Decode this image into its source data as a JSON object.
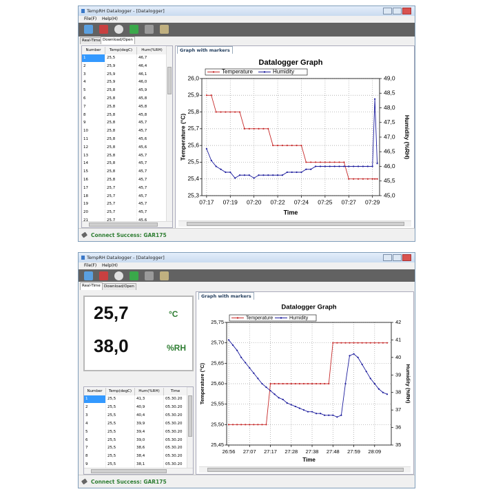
{
  "windows": [
    {
      "title": "TempRH Datalogger - [Datalogger]",
      "menu": [
        "File(F)",
        "Help(H)"
      ],
      "tabs": [
        "Real-Time",
        "Download/Open"
      ],
      "table": {
        "columns": [
          "Number",
          "Temp(degC)",
          "Hum(%RH)"
        ],
        "rows": [
          [
            "1",
            "25,5",
            "46,7"
          ],
          [
            "2",
            "25,9",
            "46,4"
          ],
          [
            "3",
            "25,9",
            "46,1"
          ],
          [
            "4",
            "25,9",
            "46,0"
          ],
          [
            "5",
            "25,8",
            "45,9"
          ],
          [
            "6",
            "25,8",
            "45,8"
          ],
          [
            "7",
            "25,8",
            "45,8"
          ],
          [
            "8",
            "25,8",
            "45,8"
          ],
          [
            "9",
            "25,8",
            "45,7"
          ],
          [
            "10",
            "25,8",
            "45,7"
          ],
          [
            "11",
            "25,8",
            "45,6"
          ],
          [
            "12",
            "25,8",
            "45,6"
          ],
          [
            "13",
            "25,8",
            "45,7"
          ],
          [
            "14",
            "25,8",
            "45,7"
          ],
          [
            "15",
            "25,8",
            "45,7"
          ],
          [
            "16",
            "25,8",
            "45,7"
          ],
          [
            "17",
            "25,7",
            "45,7"
          ],
          [
            "18",
            "25,7",
            "45,7"
          ],
          [
            "19",
            "25,7",
            "45,7"
          ],
          [
            "20",
            "25,7",
            "45,7"
          ],
          [
            "21",
            "25,7",
            "45,6"
          ]
        ]
      },
      "graph_tab": "Graph with markers",
      "status": "Connect Success: GAR175"
    },
    {
      "title": "TempRH Datalogger - [Datalogger]",
      "menu": [
        "File(F)",
        "Help(H)"
      ],
      "tabs": [
        "Real-Time",
        "Download/Open"
      ],
      "readout": {
        "temperature": "25,7",
        "temperature_unit": "°C",
        "humidity": "38,0",
        "humidity_unit": "%RH"
      },
      "table": {
        "columns": [
          "Number",
          "Temp(degC)",
          "Hum(%RH)",
          "Time"
        ],
        "rows": [
          [
            "1",
            "25,5",
            "41,3",
            "05.30.20"
          ],
          [
            "2",
            "25,5",
            "40,9",
            "05.30.20"
          ],
          [
            "3",
            "25,5",
            "40,4",
            "05.30.20"
          ],
          [
            "4",
            "25,5",
            "39,9",
            "05.30.20"
          ],
          [
            "5",
            "25,5",
            "39,4",
            "05.30.20"
          ],
          [
            "6",
            "25,5",
            "39,0",
            "05.30.20"
          ],
          [
            "7",
            "25,5",
            "38,6",
            "05.30.20"
          ],
          [
            "8",
            "25,5",
            "38,4",
            "05.30.20"
          ],
          [
            "9",
            "25,5",
            "38,1",
            "05.30.20"
          ]
        ]
      },
      "graph_tab": "Graph with markers",
      "status": "Connect Success: GAR175"
    }
  ],
  "chart_data": [
    {
      "type": "line",
      "title": "Datalogger Graph",
      "x_label": "Time",
      "y_label": "Temperature (°C)",
      "y2_label": "Humidity (%RH)",
      "grid": true,
      "x": [
        0,
        2,
        4,
        6,
        8,
        10,
        12,
        14,
        16,
        18,
        20,
        22,
        24,
        26,
        28,
        30,
        32,
        34,
        36,
        38,
        40,
        42,
        44,
        46,
        48,
        50,
        52,
        54,
        56,
        58,
        60,
        62,
        64,
        66,
        68,
        70,
        71,
        72
      ],
      "xlim": [
        -2,
        73
      ],
      "xticks": [
        {
          "value": 0,
          "label": "07:17"
        },
        {
          "value": 10,
          "label": "07:19"
        },
        {
          "value": 20,
          "label": "07:20"
        },
        {
          "value": 30,
          "label": "07:22"
        },
        {
          "value": 40,
          "label": "07:24"
        },
        {
          "value": 50,
          "label": "07:25"
        },
        {
          "value": 60,
          "label": "07:27"
        },
        {
          "value": 70,
          "label": "07:29"
        }
      ],
      "ylim": [
        25.3,
        26.0
      ],
      "yticks": [
        {
          "value": 25.3,
          "label": "25,3"
        },
        {
          "value": 25.4,
          "label": "25,4"
        },
        {
          "value": 25.5,
          "label": "25,5"
        },
        {
          "value": 25.6,
          "label": "25,6"
        },
        {
          "value": 25.7,
          "label": "25,7"
        },
        {
          "value": 25.8,
          "label": "25,8"
        },
        {
          "value": 25.9,
          "label": "25,9"
        },
        {
          "value": 26.0,
          "label": "26,0"
        }
      ],
      "y2lim": [
        45.0,
        49.0
      ],
      "y2ticks": [
        {
          "value": 45.0,
          "label": "45,0"
        },
        {
          "value": 45.5,
          "label": "45,5"
        },
        {
          "value": 46.0,
          "label": "46,0"
        },
        {
          "value": 46.5,
          "label": "46,5"
        },
        {
          "value": 47.0,
          "label": "47,0"
        },
        {
          "value": 47.5,
          "label": "47,5"
        },
        {
          "value": 48.0,
          "label": "48,0"
        },
        {
          "value": 48.5,
          "label": "48,5"
        },
        {
          "value": 49.0,
          "label": "49,0"
        }
      ],
      "series": [
        {
          "name": "Temperature",
          "color": "#c62828",
          "values": [
            25.9,
            25.9,
            25.8,
            25.8,
            25.8,
            25.8,
            25.8,
            25.8,
            25.7,
            25.7,
            25.7,
            25.7,
            25.7,
            25.7,
            25.6,
            25.6,
            25.6,
            25.6,
            25.6,
            25.6,
            25.6,
            25.5,
            25.5,
            25.5,
            25.5,
            25.5,
            25.5,
            25.5,
            25.5,
            25.5,
            25.4,
            25.4,
            25.4,
            25.4,
            25.4,
            25.4,
            25.4,
            25.4
          ]
        },
        {
          "name": "Humidity",
          "color": "#1a1a9c",
          "axis": "y2",
          "values": [
            46.6,
            46.2,
            46.0,
            45.9,
            45.8,
            45.8,
            45.6,
            45.7,
            45.7,
            45.7,
            45.6,
            45.7,
            45.7,
            45.7,
            45.7,
            45.7,
            45.7,
            45.8,
            45.8,
            45.8,
            45.8,
            45.9,
            45.9,
            46.0,
            46.0,
            46.0,
            46.0,
            46.0,
            46.0,
            46.0,
            46.0,
            46.0,
            46.0,
            46.0,
            46.0,
            46.0,
            48.3,
            46.1
          ]
        }
      ]
    },
    {
      "type": "line",
      "title": "Datalogger Graph",
      "x_label": "Time",
      "y_label": "Temperature (°C)",
      "y2_label": "Humidity (%RH)",
      "grid": true,
      "x": [
        1,
        3,
        5,
        7,
        9,
        11,
        13,
        15,
        17,
        19,
        21,
        23,
        25,
        27,
        29,
        31,
        33,
        35,
        37,
        39,
        41,
        43,
        45,
        47,
        49,
        51,
        53,
        55,
        57,
        59,
        61,
        63,
        65,
        67,
        69,
        71,
        73,
        75,
        77
      ],
      "xlim": [
        0,
        79
      ],
      "xticks": [
        {
          "value": 1,
          "label": "26:56"
        },
        {
          "value": 11,
          "label": "27:07"
        },
        {
          "value": 21,
          "label": "27:17"
        },
        {
          "value": 31,
          "label": "27:28"
        },
        {
          "value": 41,
          "label": "27:38"
        },
        {
          "value": 51,
          "label": "27:48"
        },
        {
          "value": 61,
          "label": "27:59"
        },
        {
          "value": 71,
          "label": "28:09"
        }
      ],
      "ylim": [
        25.45,
        25.75
      ],
      "yticks": [
        {
          "value": 25.45,
          "label": "25,45"
        },
        {
          "value": 25.5,
          "label": "25,50"
        },
        {
          "value": 25.55,
          "label": "25,55"
        },
        {
          "value": 25.6,
          "label": "25,60"
        },
        {
          "value": 25.65,
          "label": "25,65"
        },
        {
          "value": 25.7,
          "label": "25,70"
        },
        {
          "value": 25.75,
          "label": "25,75"
        }
      ],
      "y2lim": [
        35,
        42
      ],
      "y2ticks": [
        35,
        36,
        37,
        38,
        39,
        40,
        41,
        42
      ],
      "series": [
        {
          "name": "Temperature",
          "color": "#c62828",
          "values": [
            25.5,
            25.5,
            25.5,
            25.5,
            25.5,
            25.5,
            25.5,
            25.5,
            25.5,
            25.5,
            25.6,
            25.6,
            25.6,
            25.6,
            25.6,
            25.6,
            25.6,
            25.6,
            25.6,
            25.6,
            25.6,
            25.6,
            25.6,
            25.6,
            25.6,
            25.7,
            25.7,
            25.7,
            25.7,
            25.7,
            25.7,
            25.7,
            25.7,
            25.7,
            25.7,
            25.7,
            25.7,
            25.7,
            25.7
          ]
        },
        {
          "name": "Humidity",
          "color": "#1a1a9c",
          "axis": "y2",
          "values": [
            41.0,
            40.7,
            40.4,
            40.0,
            39.7,
            39.4,
            39.1,
            38.8,
            38.5,
            38.3,
            38.1,
            37.9,
            37.7,
            37.6,
            37.4,
            37.3,
            37.2,
            37.1,
            37.0,
            36.9,
            36.9,
            36.8,
            36.8,
            36.7,
            36.7,
            36.7,
            36.6,
            36.7,
            38.5,
            40.1,
            40.2,
            40.0,
            39.6,
            39.2,
            38.8,
            38.5,
            38.2,
            38.0,
            37.9
          ]
        }
      ]
    }
  ]
}
